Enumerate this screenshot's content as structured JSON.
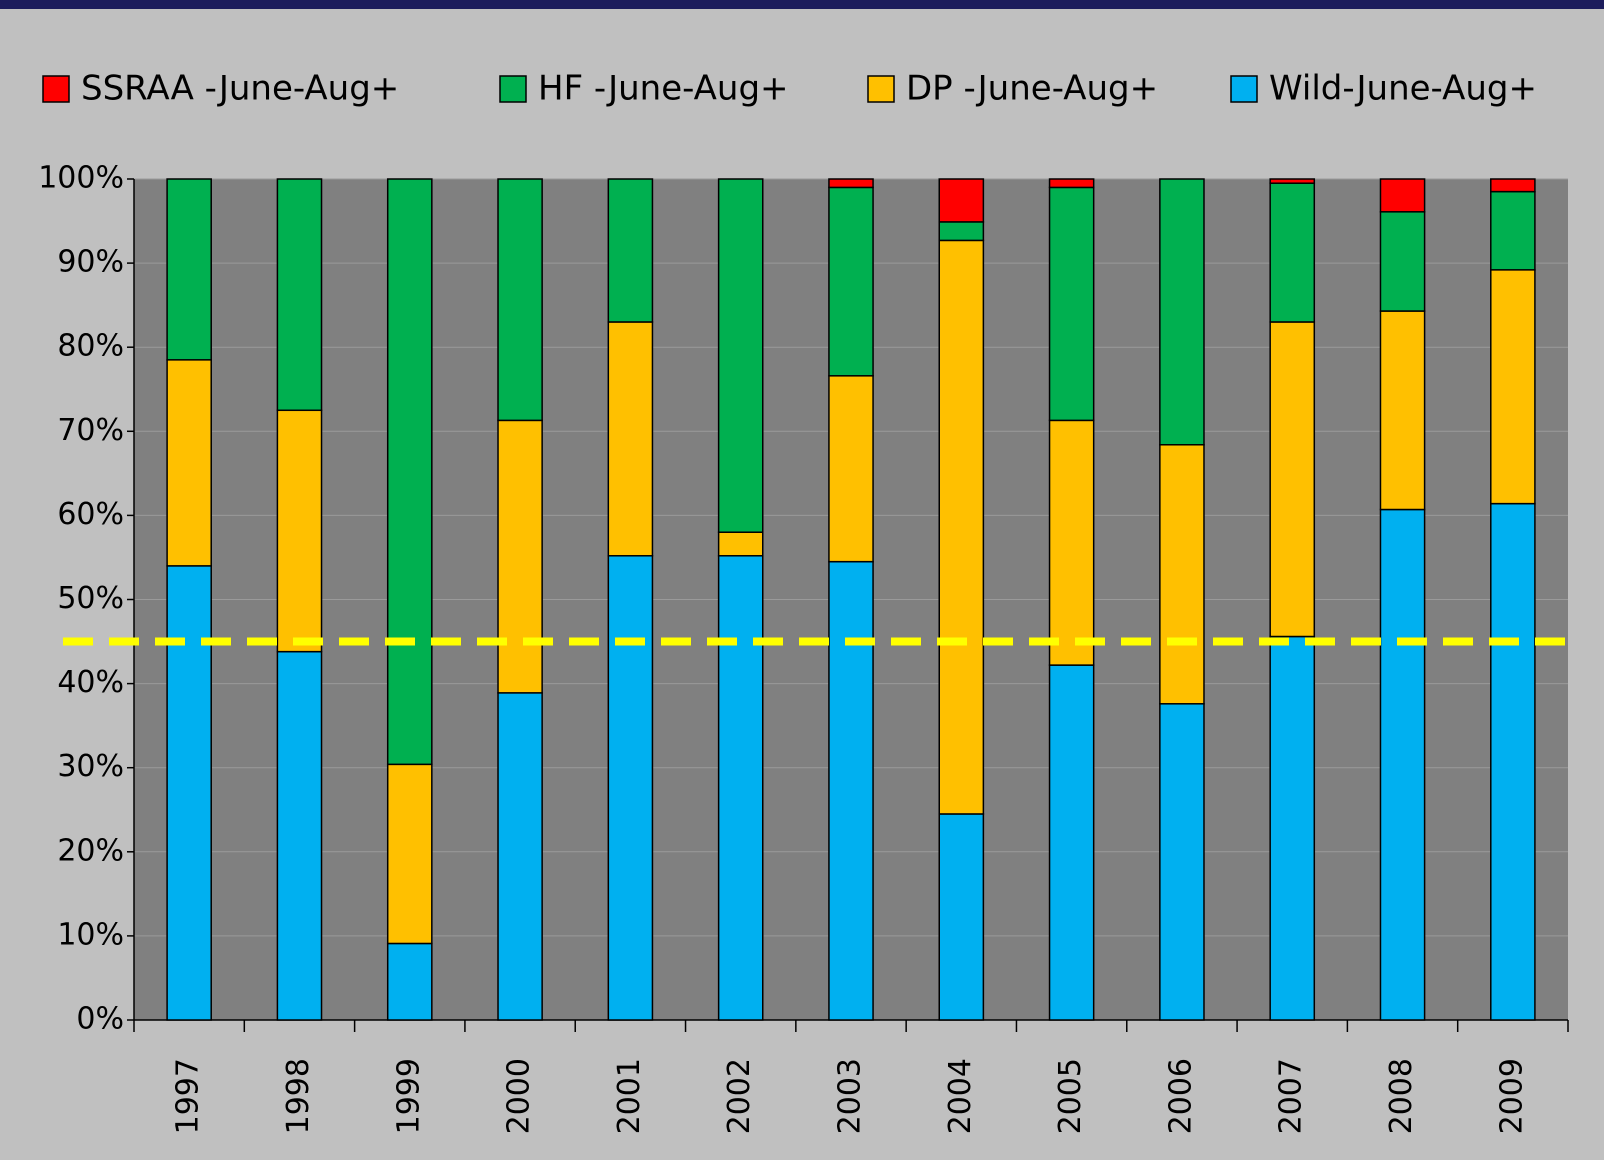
{
  "chart_data": {
    "type": "stacked_bar",
    "categories": [
      "1997",
      "1998",
      "1999",
      "2000",
      "2001",
      "2002",
      "2003",
      "2004",
      "2005",
      "2006",
      "2007",
      "2008",
      "2009"
    ],
    "series": [
      {
        "name": "SSRAA -June-Aug+",
        "color": "#ff0000",
        "values": [
          0,
          0,
          0,
          0,
          0,
          0,
          1.0,
          5.1,
          1.0,
          0,
          0.5,
          3.9,
          1.5
        ]
      },
      {
        "name": "HF -June-Aug+",
        "color": "#00b050",
        "values": [
          21.5,
          27.5,
          69.6,
          28.7,
          17.0,
          42.0,
          22.4,
          2.2,
          27.7,
          31.6,
          16.5,
          11.8,
          9.3
        ]
      },
      {
        "name": "DP -June-Aug+",
        "color": "#ffc000",
        "values": [
          24.5,
          28.7,
          21.3,
          32.4,
          27.8,
          2.8,
          22.1,
          68.2,
          29.1,
          30.8,
          37.4,
          23.6,
          27.8
        ]
      },
      {
        "name": "Wild-June-Aug+",
        "color": "#00b0f0",
        "values": [
          54.0,
          43.8,
          9.1,
          38.9,
          55.2,
          55.2,
          54.5,
          24.5,
          42.2,
          37.6,
          45.6,
          60.7,
          61.4
        ]
      }
    ],
    "ylim": [
      0,
      100
    ],
    "yticks": [
      {
        "value": 0,
        "label": "0%"
      },
      {
        "value": 10,
        "label": "10%"
      },
      {
        "value": 20,
        "label": "20%"
      },
      {
        "value": 30,
        "label": "30%"
      },
      {
        "value": 40,
        "label": "40%"
      },
      {
        "value": 50,
        "label": "50%"
      },
      {
        "value": 60,
        "label": "60%"
      },
      {
        "value": 70,
        "label": "70%"
      },
      {
        "value": 80,
        "label": "80%"
      },
      {
        "value": 90,
        "label": "90%"
      },
      {
        "value": 100,
        "label": "100%"
      }
    ],
    "grid": true,
    "reference_line": {
      "value": 45,
      "color": "#ffff00"
    },
    "legend": "top"
  }
}
